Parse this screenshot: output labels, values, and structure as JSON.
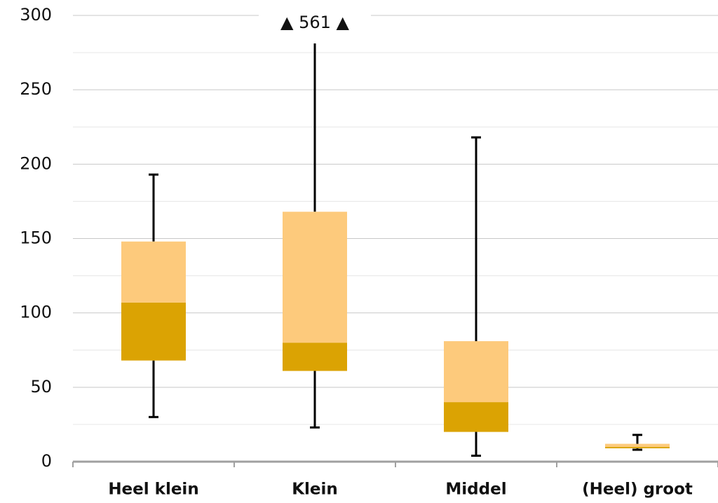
{
  "chart_data": {
    "type": "box",
    "categories": [
      "Heel klein",
      "Klein",
      "Middel",
      "(Heel) groot"
    ],
    "whisker_low": [
      30,
      23,
      4,
      8
    ],
    "q1": [
      68,
      61,
      20,
      9
    ],
    "median": [
      107,
      80,
      40,
      10
    ],
    "q3": [
      148,
      168,
      81,
      12
    ],
    "whisker_high": [
      193,
      561,
      218,
      18
    ],
    "whisker_high_labels": [
      null,
      "▲ 561 ▲",
      null,
      null
    ],
    "lower_color": "#dba303",
    "upper_color": "#fdca7c",
    "whisker_color": "#000000",
    "ylim": [
      0,
      300
    ],
    "yticks": [
      0,
      50,
      100,
      150,
      200,
      250,
      300
    ],
    "minor_yticks": [
      25,
      75,
      125,
      175,
      225,
      275
    ],
    "grid": true
  }
}
